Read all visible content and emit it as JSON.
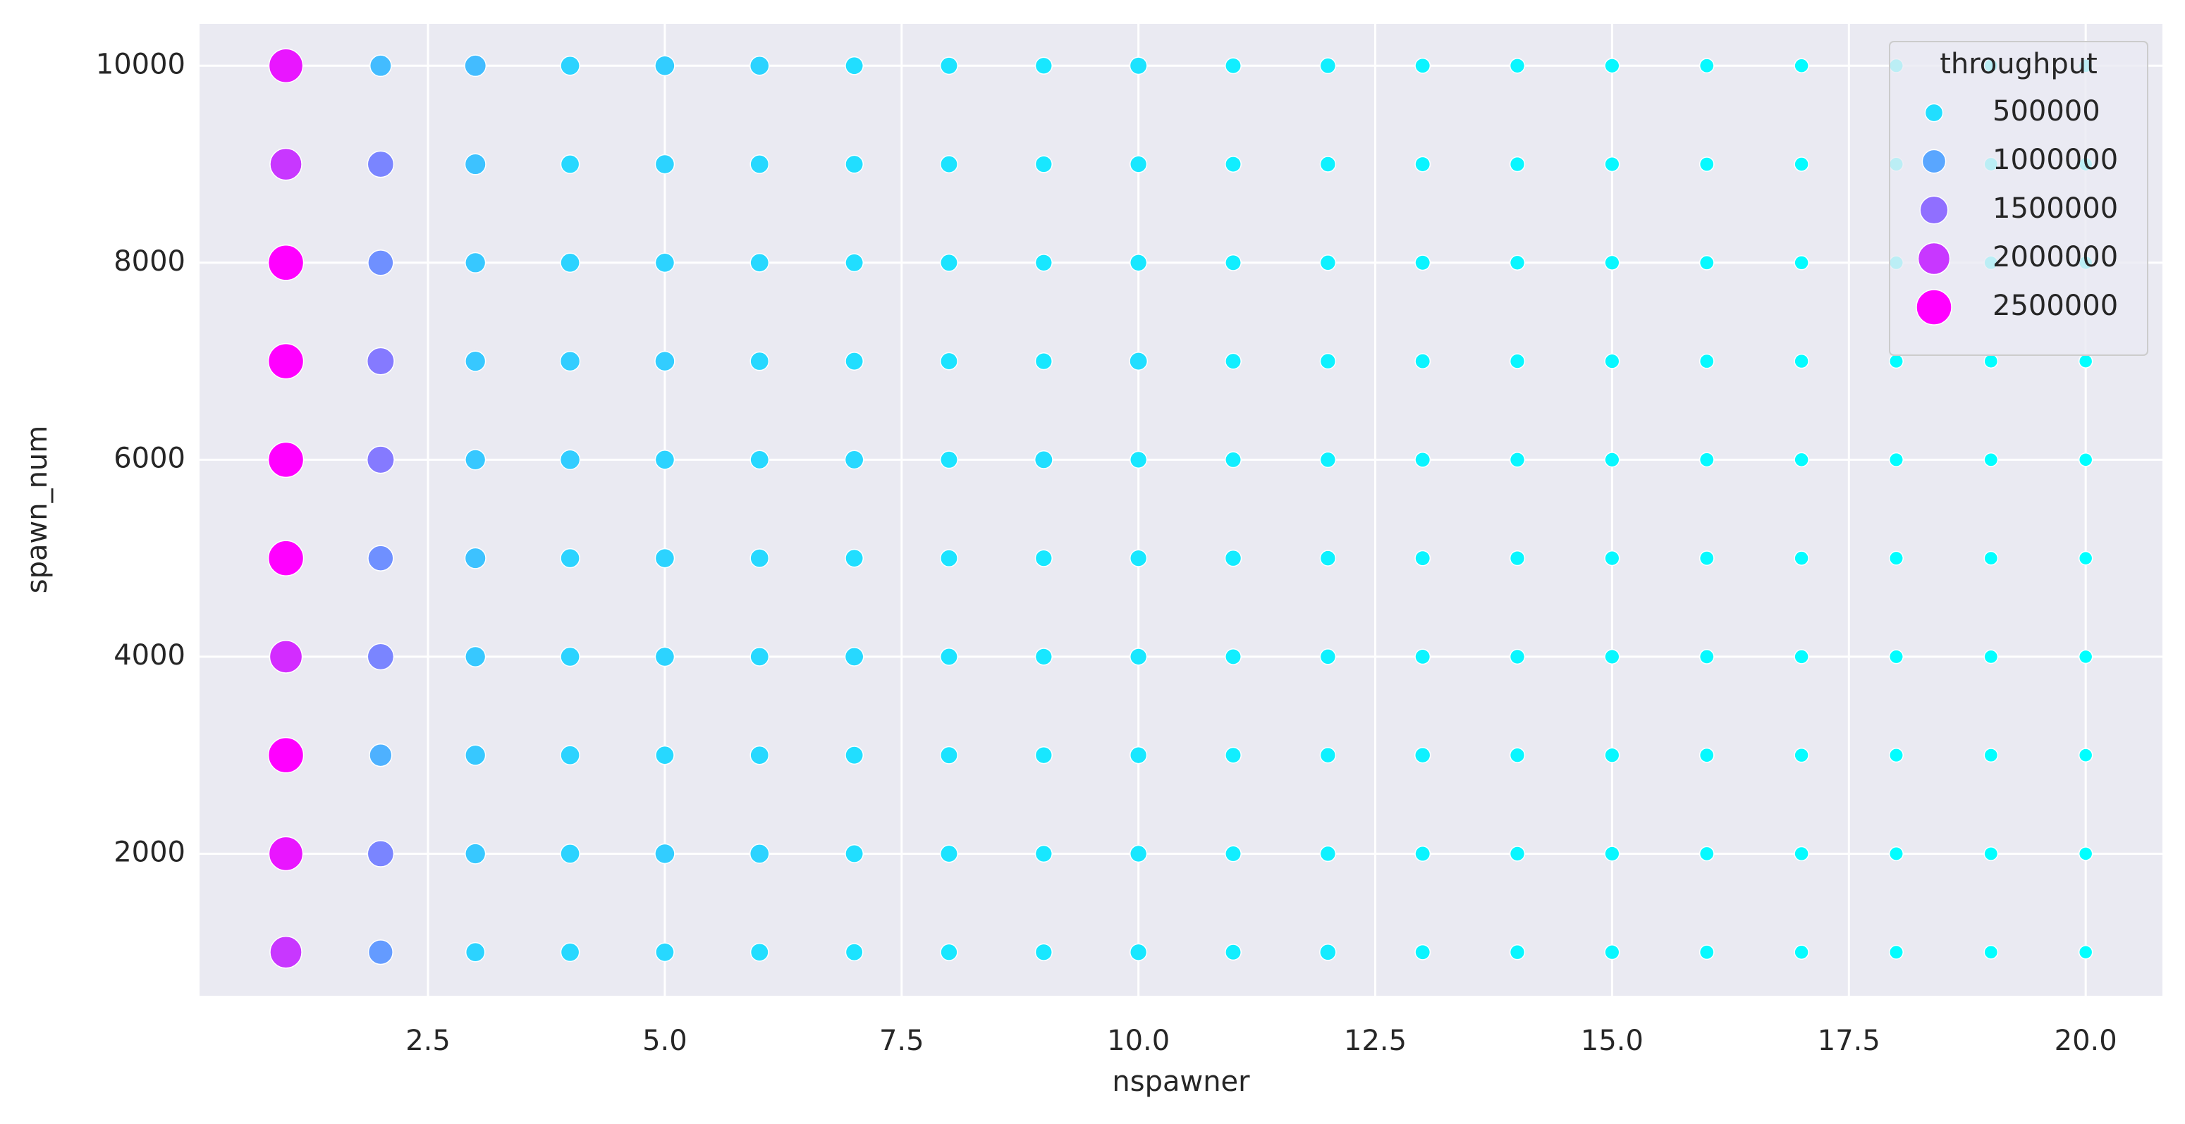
{
  "chart_data": {
    "type": "scatter",
    "x_label": "nspawner",
    "y_label": "spawn_num",
    "xlim": [
      0.088,
      20.81
    ],
    "ylim": [
      558,
      10424
    ],
    "xticks": [
      2.5,
      {
        "value": 5,
        "label": "5.0"
      },
      7.5,
      {
        "value": 10,
        "label": "10.0"
      },
      12.5,
      {
        "value": 15,
        "label": "15.0"
      },
      17.5,
      {
        "value": 20,
        "label": "20.0"
      }
    ],
    "yticks": [
      2000,
      4000,
      6000,
      8000,
      10000
    ],
    "grid": true,
    "colormap": "cool",
    "legend": {
      "title": "throughput",
      "values": [
        500000,
        1000000,
        1500000,
        2000000,
        2500000
      ],
      "loc": "upper right"
    },
    "x": [
      1,
      2,
      3,
      4,
      5,
      6,
      7,
      8,
      9,
      10,
      11,
      12,
      13,
      14,
      15,
      16,
      17,
      18,
      19,
      20,
      1,
      2,
      3,
      4,
      5,
      6,
      7,
      8,
      9,
      10,
      11,
      12,
      13,
      14,
      15,
      16,
      17,
      18,
      19,
      20,
      1,
      2,
      3,
      4,
      5,
      6,
      7,
      8,
      9,
      10,
      11,
      12,
      13,
      14,
      15,
      16,
      17,
      18,
      19,
      20,
      1,
      2,
      3,
      4,
      5,
      6,
      7,
      8,
      9,
      10,
      11,
      12,
      13,
      14,
      15,
      16,
      17,
      18,
      19,
      20,
      1,
      2,
      3,
      4,
      5,
      6,
      7,
      8,
      9,
      10,
      11,
      12,
      13,
      14,
      15,
      16,
      17,
      18,
      19,
      20,
      1,
      2,
      3,
      4,
      5,
      6,
      7,
      8,
      9,
      10,
      11,
      12,
      13,
      14,
      15,
      16,
      17,
      18,
      19,
      20,
      1,
      2,
      3,
      4,
      5,
      6,
      7,
      8,
      9,
      10,
      11,
      12,
      13,
      14,
      15,
      16,
      17,
      18,
      19,
      20,
      1,
      2,
      3,
      4,
      5,
      6,
      7,
      8,
      9,
      10,
      11,
      12,
      13,
      14,
      15,
      16,
      17,
      18,
      19,
      20,
      1,
      2,
      3,
      4,
      5,
      6,
      7,
      8,
      9,
      10,
      11,
      12,
      13,
      14,
      15,
      16,
      17,
      18,
      19,
      20,
      1,
      2,
      3,
      4,
      5,
      6,
      7,
      8,
      9,
      10,
      11,
      12,
      13,
      14,
      15,
      16,
      17,
      18,
      19,
      20
    ],
    "y": [
      10000,
      10000,
      10000,
      10000,
      10000,
      10000,
      10000,
      10000,
      10000,
      10000,
      10000,
      10000,
      10000,
      10000,
      10000,
      10000,
      10000,
      10000,
      10000,
      10000,
      9000,
      9000,
      9000,
      9000,
      9000,
      9000,
      9000,
      9000,
      9000,
      9000,
      9000,
      9000,
      9000,
      9000,
      9000,
      9000,
      9000,
      9000,
      9000,
      9000,
      8000,
      8000,
      8000,
      8000,
      8000,
      8000,
      8000,
      8000,
      8000,
      8000,
      8000,
      8000,
      8000,
      8000,
      8000,
      8000,
      8000,
      8000,
      8000,
      8000,
      7000,
      7000,
      7000,
      7000,
      7000,
      7000,
      7000,
      7000,
      7000,
      7000,
      7000,
      7000,
      7000,
      7000,
      7000,
      7000,
      7000,
      7000,
      7000,
      7000,
      6000,
      6000,
      6000,
      6000,
      6000,
      6000,
      6000,
      6000,
      6000,
      6000,
      6000,
      6000,
      6000,
      6000,
      6000,
      6000,
      6000,
      6000,
      6000,
      6000,
      5000,
      5000,
      5000,
      5000,
      5000,
      5000,
      5000,
      5000,
      5000,
      5000,
      5000,
      5000,
      5000,
      5000,
      5000,
      5000,
      5000,
      5000,
      5000,
      5000,
      4000,
      4000,
      4000,
      4000,
      4000,
      4000,
      4000,
      4000,
      4000,
      4000,
      4000,
      4000,
      4000,
      4000,
      4000,
      4000,
      4000,
      4000,
      4000,
      4000,
      3000,
      3000,
      3000,
      3000,
      3000,
      3000,
      3000,
      3000,
      3000,
      3000,
      3000,
      3000,
      3000,
      3000,
      3000,
      3000,
      3000,
      3000,
      3000,
      3000,
      2000,
      2000,
      2000,
      2000,
      2000,
      2000,
      2000,
      2000,
      2000,
      2000,
      2000,
      2000,
      2000,
      2000,
      2000,
      2000,
      2000,
      2000,
      2000,
      2000,
      1000,
      1000,
      1000,
      1000,
      1000,
      1000,
      1000,
      1000,
      1000,
      1000,
      1000,
      1000,
      1000,
      1000,
      1000,
      1000,
      1000,
      1000,
      1000,
      1000
    ],
    "size": [
      2300000,
      800000,
      800000,
      600000,
      650000,
      600000,
      500000,
      450000,
      420000,
      450000,
      350000,
      340000,
      300000,
      280000,
      270000,
      250000,
      240000,
      220000,
      210000,
      200000,
      2000000,
      1300000,
      750000,
      550000,
      600000,
      550000,
      500000,
      450000,
      420000,
      420000,
      350000,
      330000,
      300000,
      280000,
      270000,
      250000,
      240000,
      220000,
      210000,
      200000,
      2500000,
      1200000,
      700000,
      600000,
      600000,
      550000,
      500000,
      450000,
      420000,
      420000,
      350000,
      330000,
      300000,
      280000,
      270000,
      250000,
      240000,
      220000,
      210000,
      200000,
      2500000,
      1400000,
      700000,
      650000,
      650000,
      550000,
      500000,
      450000,
      420000,
      500000,
      350000,
      330000,
      300000,
      280000,
      270000,
      250000,
      240000,
      220000,
      210000,
      200000,
      2500000,
      1400000,
      700000,
      650000,
      600000,
      550000,
      550000,
      450000,
      500000,
      420000,
      350000,
      330000,
      300000,
      280000,
      270000,
      250000,
      240000,
      220000,
      210000,
      200000,
      2500000,
      1200000,
      750000,
      600000,
      600000,
      550000,
      500000,
      450000,
      420000,
      420000,
      380000,
      330000,
      300000,
      280000,
      270000,
      250000,
      240000,
      220000,
      210000,
      200000,
      2100000,
      1300000,
      700000,
      600000,
      600000,
      550000,
      550000,
      450000,
      420000,
      420000,
      350000,
      330000,
      300000,
      280000,
      270000,
      250000,
      240000,
      220000,
      210000,
      200000,
      2500000,
      900000,
      700000,
      600000,
      550000,
      550000,
      500000,
      450000,
      420000,
      420000,
      350000,
      330000,
      330000,
      280000,
      270000,
      250000,
      240000,
      220000,
      210000,
      200000,
      2300000,
      1300000,
      700000,
      600000,
      650000,
      600000,
      500000,
      450000,
      420000,
      420000,
      350000,
      330000,
      300000,
      280000,
      270000,
      250000,
      240000,
      220000,
      210000,
      200000,
      2000000,
      1100000,
      600000,
      550000,
      550000,
      500000,
      450000,
      420000,
      420000,
      420000,
      350000,
      380000,
      300000,
      280000,
      270000,
      250000,
      240000,
      220000,
      210000,
      200000
    ]
  }
}
